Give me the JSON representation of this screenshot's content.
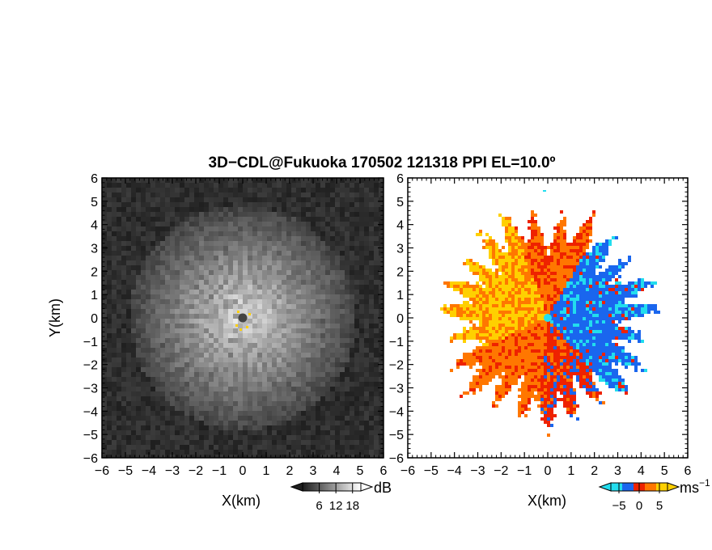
{
  "chart_data": {
    "title": "3D−CDL@Fukuoka 170502 121318 PPI EL=10.0º",
    "panels": [
      {
        "type": "heatmap",
        "quantity": "reflectivity",
        "xlabel": "X(km)",
        "ylabel": "Y(km)",
        "xlim": [
          -6,
          6
        ],
        "ylim": [
          -6,
          6
        ],
        "xticks": [
          "−6",
          "−5",
          "−4",
          "−3",
          "−2",
          "−1",
          "0",
          "1",
          "2",
          "3",
          "4",
          "5",
          "6"
        ],
        "yticks": [
          "6",
          "5",
          "4",
          "3",
          "2",
          "1",
          "0",
          "−1",
          "−2",
          "−3",
          "−4",
          "−5",
          "−6"
        ],
        "colormap": "grayscale",
        "colorbar": {
          "unit": "dB",
          "ticks": [
            "6",
            "12",
            "18"
          ],
          "range": [
            0,
            21
          ]
        }
      },
      {
        "type": "heatmap",
        "quantity": "doppler velocity",
        "xlabel": "X(km)",
        "xlim": [
          -6,
          6
        ],
        "ylim": [
          -6,
          6
        ],
        "xticks": [
          "−6",
          "−5",
          "−4",
          "−3",
          "−2",
          "−1",
          "0",
          "1",
          "2",
          "3",
          "4",
          "5",
          "6"
        ],
        "yticks": [
          "6",
          "5",
          "4",
          "3",
          "2",
          "1",
          "0",
          "−1",
          "−2",
          "−3",
          "−4",
          "−5",
          "−6"
        ],
        "colormap": "cyan-blue-red-orange-yellow",
        "colorbar": {
          "unit": "ms",
          "unit_exp": "−1",
          "ticks": [
            "−5",
            "0",
            "5"
          ],
          "range": [
            -7,
            7
          ]
        }
      }
    ]
  },
  "colors": {
    "cyan": "#22ddee",
    "blue": "#1a66ee",
    "red": "#ee2200",
    "orange": "#ff7700",
    "yellow": "#ffd000"
  }
}
